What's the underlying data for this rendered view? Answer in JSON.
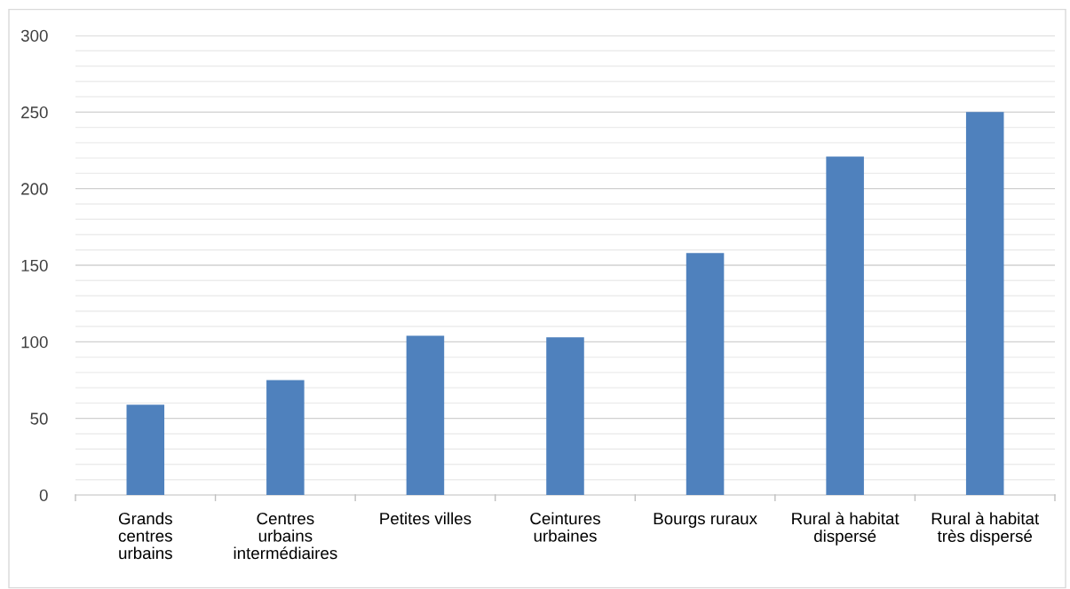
{
  "chart_data": {
    "type": "bar",
    "categories": [
      "Grands\ncentres\nurbains",
      "Centres\nurbains\nintermédiaires",
      "Petites villes",
      "Ceintures\nurbaines",
      "Bourgs ruraux",
      "Rural à habitat\ndispersé",
      "Rural à habitat\ntrès dispersé"
    ],
    "values": [
      59,
      75,
      104,
      103,
      158,
      221,
      250
    ],
    "color": "#4f81bd",
    "ylim": [
      0,
      300
    ],
    "yticks": [
      0,
      {
        "value": 10,
        "label": null
      },
      {
        "value": 20,
        "label": null
      },
      {
        "value": 30,
        "label": null
      },
      {
        "value": 40,
        "label": null
      },
      50,
      {
        "value": 60,
        "label": null
      },
      {
        "value": 70,
        "label": null
      },
      {
        "value": 80,
        "label": null
      },
      {
        "value": 90,
        "label": null
      },
      100,
      {
        "value": 110,
        "label": null
      },
      {
        "value": 120,
        "label": null
      },
      {
        "value": 130,
        "label": null
      },
      {
        "value": 140,
        "label": null
      },
      150,
      {
        "value": 160,
        "label": null
      },
      {
        "value": 170,
        "label": null
      },
      {
        "value": 180,
        "label": null
      },
      {
        "value": 190,
        "label": null
      },
      200,
      {
        "value": 210,
        "label": null
      },
      {
        "value": 220,
        "label": null
      },
      {
        "value": 230,
        "label": null
      },
      {
        "value": 240,
        "label": null
      },
      250,
      {
        "value": 260,
        "label": null
      },
      {
        "value": 270,
        "label": null
      },
      {
        "value": 280,
        "label": null
      },
      {
        "value": 290,
        "label": null
      },
      300
    ],
    "grid": "y"
  }
}
